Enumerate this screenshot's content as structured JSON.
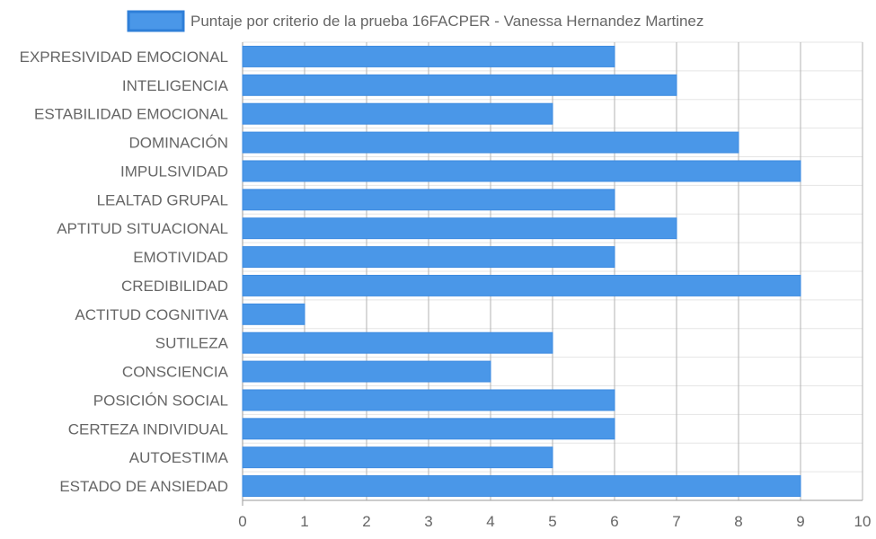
{
  "chart_data": {
    "type": "bar",
    "orientation": "horizontal",
    "title": "",
    "xlabel": "",
    "ylabel": "",
    "categories": [
      "EXPRESIVIDAD EMOCIONAL",
      "INTELIGENCIA",
      "ESTABILIDAD EMOCIONAL",
      "DOMINACIÓN",
      "IMPULSIVIDAD",
      "LEALTAD GRUPAL",
      "APTITUD SITUACIONAL",
      "EMOTIVIDAD",
      "CREDIBILIDAD",
      "ACTITUD COGNITIVA",
      "SUTILEZA",
      "CONSCIENCIA",
      "POSICIÓN SOCIAL",
      "CERTEZA INDIVIDUAL",
      "AUTOESTIMA",
      "ESTADO DE ANSIEDAD"
    ],
    "series": [
      {
        "name": "Puntaje por criterio de la prueba 16FACPER - Vanessa Hernandez Martinez",
        "color": "#4a97e8",
        "values": [
          6,
          7,
          5,
          8,
          9,
          6,
          7,
          6,
          9,
          1,
          5,
          4,
          6,
          6,
          5,
          9
        ]
      }
    ],
    "xlim": [
      0,
      10
    ],
    "x_ticks": [
      "0",
      "1",
      "2",
      "3",
      "4",
      "5",
      "6",
      "7",
      "8",
      "9",
      "10"
    ],
    "grid": true,
    "legend_position": "top"
  }
}
